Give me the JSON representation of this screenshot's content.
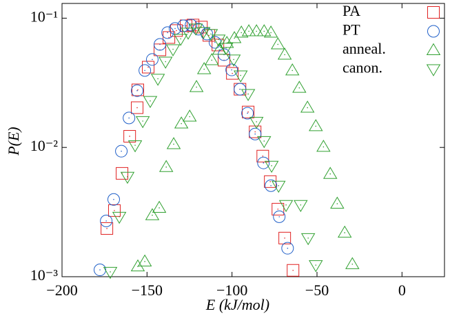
{
  "chart_data": {
    "type": "scatter",
    "xlabel": "E (kJ/mol)",
    "ylabel": "P(E)",
    "xlim": [
      -200,
      25
    ],
    "ylim": [
      0.001,
      0.13
    ],
    "log_y": true,
    "grid": false,
    "legend": "upper right",
    "xticks": [
      {
        "value": -200,
        "label": "−200"
      },
      {
        "value": -150,
        "label": "−150"
      },
      {
        "value": -100,
        "label": "−100"
      },
      {
        "value": -50,
        "label": "−50"
      },
      0
    ],
    "yticks": [
      {
        "value": 0.001,
        "label": "10⁻³"
      },
      {
        "value": 0.01,
        "label": "10⁻²"
      },
      {
        "value": 0.1,
        "label": "10⁻¹"
      }
    ],
    "series": [
      {
        "name": "PA",
        "color": "#e02020",
        "marker": "square",
        "x": [
          -173.6,
          -169.2,
          -164.7,
          -160.2,
          -155.8,
          -155.4,
          -149.3,
          -142.4,
          -137.1,
          -132.7,
          -127,
          -122.9,
          -118,
          -113.6,
          -108.3,
          -104.7,
          -99.8,
          -95.3,
          -90.5,
          -86.4,
          -81.9,
          -77.5,
          -73,
          -69,
          -64.1
        ],
        "values": [
          0.00236,
          0.00325,
          0.0063,
          0.0122,
          0.0203,
          0.0279,
          0.0418,
          0.0569,
          0.0709,
          0.0802,
          0.0873,
          0.0885,
          0.0853,
          0.0736,
          0.062,
          0.0473,
          0.0374,
          0.0282,
          0.0188,
          0.0132,
          0.00857,
          0.00544,
          0.00333,
          0.00199,
          0.00112
        ]
      },
      {
        "name": "PT",
        "color": "#1f5fc8",
        "marker": "circle",
        "x": [
          -177.7,
          -174,
          -169.6,
          -165.1,
          -160.6,
          -155.8,
          -151.3,
          -146.9,
          -142.4,
          -137.9,
          -133.5,
          -128.6,
          -124.1,
          -119.7,
          -114.8,
          -110,
          -104.7,
          -100.2,
          -95.3,
          -90.9,
          -86.4,
          -81.5,
          -77.1,
          -72.2,
          -67.3
        ],
        "values": [
          0.00113,
          0.0027,
          0.00396,
          0.00935,
          0.0169,
          0.0275,
          0.0394,
          0.0479,
          0.0627,
          0.0773,
          0.0832,
          0.0873,
          0.0885,
          0.0822,
          0.0754,
          0.065,
          0.0522,
          0.0398,
          0.0282,
          0.0184,
          0.0127,
          0.00759,
          0.00506,
          0.00291,
          0.00166
        ]
      },
      {
        "name": "anneal.",
        "color": "#30a030",
        "marker": "triangle-up",
        "x": [
          -155.4,
          -151.3,
          -146.9,
          -142.8,
          -138.7,
          -134.3,
          -129.8,
          -124.9,
          -120.9,
          -116.4,
          -111.9,
          -107.5,
          -103,
          -98.6,
          -94.5,
          -90.1,
          -85.6,
          -81.1,
          -77.1,
          -73,
          -69,
          -64.5,
          -60.4,
          -55.6,
          -50.7,
          -46.2,
          -42.2,
          -38.1,
          -33.7,
          -29.2
        ],
        "values": [
          0.0012,
          0.00131,
          0.00299,
          0.00341,
          0.00705,
          0.0106,
          0.0153,
          0.0173,
          0.0293,
          0.0403,
          0.0473,
          0.0569,
          0.0643,
          0.07,
          0.0773,
          0.0792,
          0.0792,
          0.0792,
          0.0773,
          0.0627,
          0.0522,
          0.0394,
          0.0289,
          0.0203,
          0.0146,
          0.0101,
          0.00624,
          0.00367,
          0.00219,
          0.00125
        ]
      },
      {
        "name": "canon.",
        "color": "#30a030",
        "marker": "triangle-down",
        "x": [
          -171.6,
          -166.3,
          -161.5,
          -157,
          -152.5,
          -148.1,
          -143.6,
          -139.1,
          -134.7,
          -130.2,
          -125.8,
          -121.3,
          -116.8,
          -112.4,
          -107.9,
          -103.4,
          -99,
          -94.9,
          -90.5,
          -85.6,
          -81.1,
          -76.7,
          -72.6,
          -68.2,
          -59.6,
          -55.2,
          -50.7
        ],
        "values": [
          0.00109,
          0.00291,
          0.00593,
          0.0104,
          0.016,
          0.0229,
          0.034,
          0.0461,
          0.0575,
          0.0692,
          0.0773,
          0.0832,
          0.0782,
          0.0754,
          0.0684,
          0.059,
          0.0479,
          0.0361,
          0.0259,
          0.0158,
          0.0112,
          0.00722,
          0.00506,
          0.00359,
          0.00359,
          0.00199,
          0.00123
        ]
      }
    ]
  }
}
